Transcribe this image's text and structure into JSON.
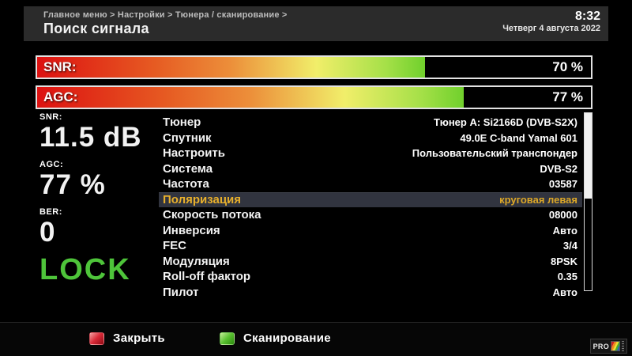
{
  "header": {
    "breadcrumb": "Главное меню > Настройки > Тюнера / сканирование >",
    "title": "Поиск сигнала",
    "time": "8:32",
    "date": "Четверг  4 августа 2022"
  },
  "meters": [
    {
      "label": "SNR:",
      "percent": 70,
      "value_text": "70 %"
    },
    {
      "label": "AGC:",
      "percent": 77,
      "value_text": "77 %"
    }
  ],
  "stats": [
    {
      "label": "SNR:",
      "value": "11.5 dB"
    },
    {
      "label": "AGC:",
      "value": "77 %"
    },
    {
      "label": "BER:",
      "value": "0"
    }
  ],
  "lock_status": "LOCK",
  "settings": {
    "rows": [
      {
        "label": "Тюнер",
        "value": "Тюнер A: Si2166D (DVB-S2X)",
        "selected": false
      },
      {
        "label": "Спутник",
        "value": "49.0E C-band Yamal 601",
        "selected": false
      },
      {
        "label": "Настроить",
        "value": "Пользовательский транспондер",
        "selected": false
      },
      {
        "label": "Система",
        "value": "DVB-S2",
        "selected": false
      },
      {
        "label": "Частота",
        "value": "03587",
        "selected": false
      },
      {
        "label": "Поляризация",
        "value": "круговая левая",
        "selected": true
      },
      {
        "label": "Скорость потока",
        "value": "08000",
        "selected": false
      },
      {
        "label": "Инверсия",
        "value": "Авто",
        "selected": false
      },
      {
        "label": "FEC",
        "value": "3/4",
        "selected": false
      },
      {
        "label": "Модуляция",
        "value": "8PSK",
        "selected": false
      },
      {
        "label": "Roll-off фактор",
        "value": "0.35",
        "selected": false
      },
      {
        "label": "Пилот",
        "value": "Авто",
        "selected": false
      }
    ]
  },
  "scrollbar": {
    "thumb_percent": 48
  },
  "footer": {
    "buttons": [
      {
        "key": "red-key-icon",
        "label": "Закрыть"
      },
      {
        "key": "green-key-icon",
        "label": "Сканирование"
      }
    ],
    "logo_text": "PRO"
  },
  "colors": {
    "highlight_bg": "#31343f",
    "highlight_text": "#e8b02c",
    "lock_green": "#4ec43a",
    "meter_gradient_start": "#dd1111",
    "meter_gradient_mid": "#f1ee6a",
    "meter_gradient_end": "#70d02c",
    "key_red": "#d92a38",
    "key_green": "#58c030"
  }
}
